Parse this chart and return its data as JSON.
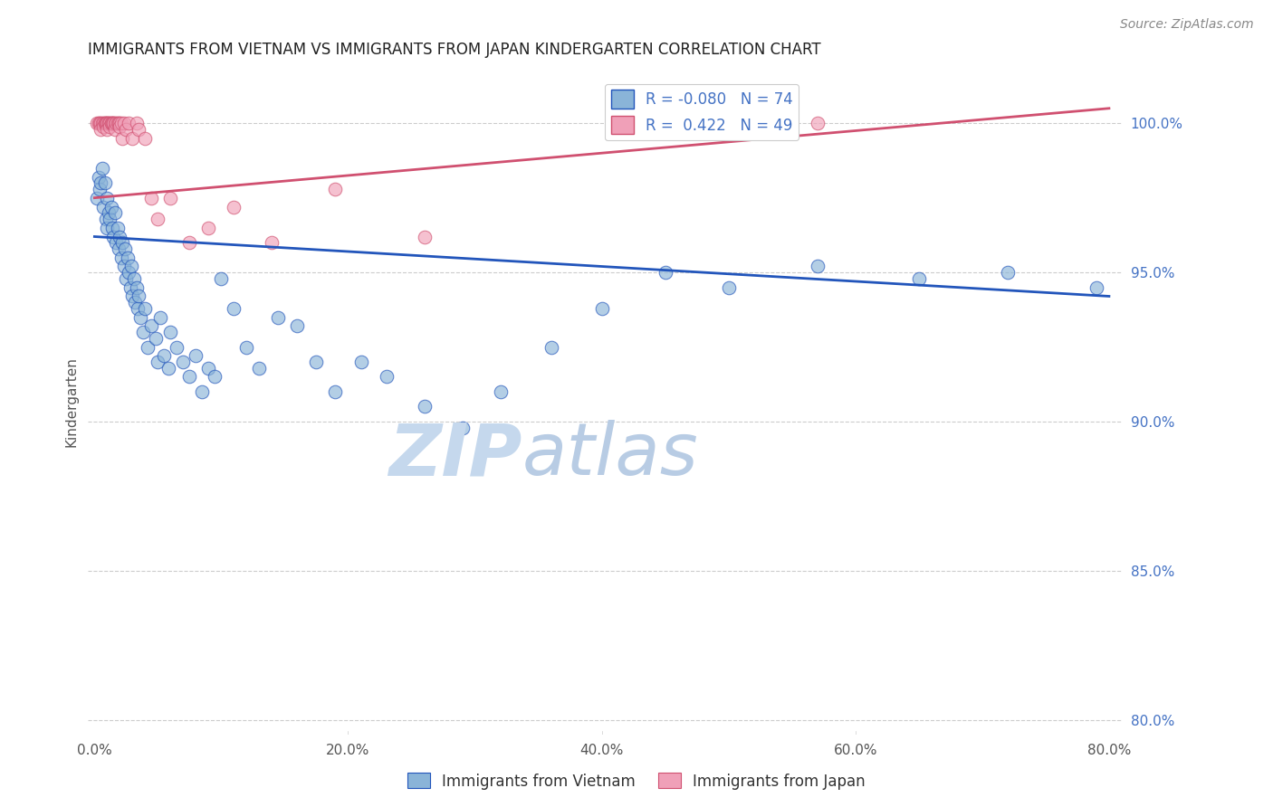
{
  "title": "IMMIGRANTS FROM VIETNAM VS IMMIGRANTS FROM JAPAN KINDERGARTEN CORRELATION CHART",
  "source": "Source: ZipAtlas.com",
  "ylabel": "Kindergarten",
  "x_tick_labels": [
    "0.0%",
    "20.0%",
    "40.0%",
    "60.0%",
    "80.0%"
  ],
  "x_tick_values": [
    0.0,
    20.0,
    40.0,
    60.0,
    80.0
  ],
  "y_right_labels": [
    "100.0%",
    "95.0%",
    "90.0%",
    "85.0%",
    "80.0%"
  ],
  "y_right_values": [
    100.0,
    95.0,
    90.0,
    85.0,
    80.0
  ],
  "ylim": [
    79.5,
    101.8
  ],
  "xlim": [
    -0.5,
    81.0
  ],
  "legend_entry1_label": "Immigrants from Vietnam",
  "legend_entry2_label": "Immigrants from Japan",
  "color_vietnam": "#8ab4d8",
  "color_japan": "#f0a0b8",
  "color_regression_vietnam": "#2255bb",
  "color_regression_japan": "#d05070",
  "watermark_zip": "ZIP",
  "watermark_atlas": "atlas",
  "watermark_color_zip": "#c8ddf0",
  "watermark_color_atlas": "#b8cce8",
  "vietnam_x": [
    0.2,
    0.3,
    0.4,
    0.5,
    0.6,
    0.7,
    0.8,
    0.9,
    1.0,
    1.0,
    1.1,
    1.2,
    1.3,
    1.4,
    1.5,
    1.6,
    1.7,
    1.8,
    1.9,
    2.0,
    2.1,
    2.2,
    2.3,
    2.4,
    2.5,
    2.6,
    2.7,
    2.8,
    2.9,
    3.0,
    3.1,
    3.2,
    3.3,
    3.4,
    3.5,
    3.6,
    3.8,
    4.0,
    4.2,
    4.5,
    4.8,
    5.0,
    5.2,
    5.5,
    5.8,
    6.0,
    6.5,
    7.0,
    7.5,
    8.0,
    8.5,
    9.0,
    9.5,
    10.0,
    11.0,
    12.0,
    13.0,
    14.5,
    16.0,
    17.5,
    19.0,
    21.0,
    23.0,
    26.0,
    29.0,
    32.0,
    36.0,
    40.0,
    45.0,
    50.0,
    57.0,
    65.0,
    72.0,
    79.0
  ],
  "vietnam_y": [
    97.5,
    98.2,
    97.8,
    98.0,
    98.5,
    97.2,
    98.0,
    96.8,
    97.5,
    96.5,
    97.0,
    96.8,
    97.2,
    96.5,
    96.2,
    97.0,
    96.0,
    96.5,
    95.8,
    96.2,
    95.5,
    96.0,
    95.2,
    95.8,
    94.8,
    95.5,
    95.0,
    94.5,
    95.2,
    94.2,
    94.8,
    94.0,
    94.5,
    93.8,
    94.2,
    93.5,
    93.0,
    93.8,
    92.5,
    93.2,
    92.8,
    92.0,
    93.5,
    92.2,
    91.8,
    93.0,
    92.5,
    92.0,
    91.5,
    92.2,
    91.0,
    91.8,
    91.5,
    94.8,
    93.8,
    92.5,
    91.8,
    93.5,
    93.2,
    92.0,
    91.0,
    92.0,
    91.5,
    90.5,
    89.8,
    91.0,
    92.5,
    93.8,
    95.0,
    94.5,
    95.2,
    94.8,
    95.0,
    94.5
  ],
  "japan_x": [
    0.2,
    0.3,
    0.4,
    0.5,
    0.5,
    0.6,
    0.7,
    0.7,
    0.8,
    0.8,
    0.9,
    1.0,
    1.0,
    1.0,
    1.1,
    1.1,
    1.2,
    1.2,
    1.3,
    1.3,
    1.4,
    1.5,
    1.5,
    1.6,
    1.6,
    1.7,
    1.8,
    1.9,
    2.0,
    2.0,
    2.1,
    2.2,
    2.3,
    2.5,
    2.7,
    3.0,
    3.3,
    3.5,
    4.0,
    4.5,
    5.0,
    6.0,
    7.5,
    9.0,
    11.0,
    14.0,
    19.0,
    26.0,
    57.0
  ],
  "japan_y": [
    100.0,
    100.0,
    100.0,
    100.0,
    99.8,
    100.0,
    100.0,
    99.9,
    100.0,
    100.0,
    100.0,
    100.0,
    100.0,
    99.8,
    100.0,
    100.0,
    100.0,
    99.9,
    100.0,
    100.0,
    100.0,
    100.0,
    100.0,
    100.0,
    99.8,
    100.0,
    100.0,
    100.0,
    100.0,
    99.9,
    100.0,
    99.5,
    100.0,
    99.8,
    100.0,
    99.5,
    100.0,
    99.8,
    99.5,
    97.5,
    96.8,
    97.5,
    96.0,
    96.5,
    97.2,
    96.0,
    97.8,
    96.2,
    100.0
  ],
  "reg_vietnam_x0": 0.0,
  "reg_vietnam_y0": 96.2,
  "reg_vietnam_x1": 80.0,
  "reg_vietnam_y1": 94.2,
  "reg_japan_x0": 0.0,
  "reg_japan_y0": 97.5,
  "reg_japan_x1": 80.0,
  "reg_japan_y1": 100.5
}
